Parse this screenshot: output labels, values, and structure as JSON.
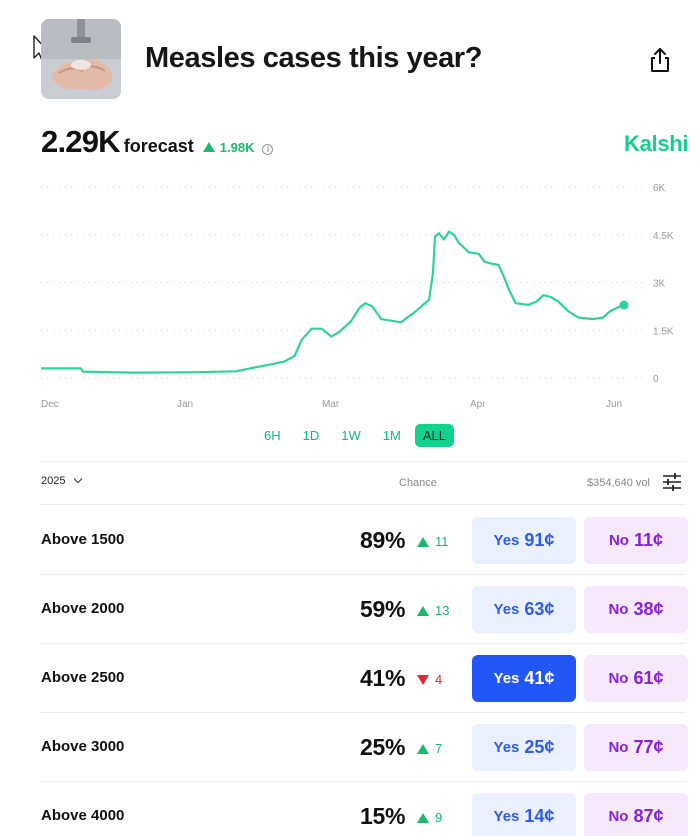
{
  "header": {
    "title": "Measles cases this year?"
  },
  "forecast": {
    "value": "2.29K",
    "label": "forecast",
    "change": "1.98K",
    "info_icon": "info-icon"
  },
  "brand": "Kalshi",
  "chart_data": {
    "type": "line",
    "x_ticks": [
      "Dec",
      "Jan",
      "Mar",
      "Apr",
      "Jun"
    ],
    "y_ticks": [
      "6K",
      "4.5K",
      "3K",
      "1.5K",
      "0"
    ],
    "ylim": [
      0,
      6000
    ],
    "grid": true,
    "color": "#2ed395",
    "series": [
      {
        "values": [
          [
            0,
            300
          ],
          [
            40,
            300
          ],
          [
            42,
            200
          ],
          [
            90,
            170
          ],
          [
            150,
            180
          ],
          [
            196,
            210
          ],
          [
            210,
            300
          ],
          [
            230,
            420
          ],
          [
            245,
            520
          ],
          [
            255,
            700
          ],
          [
            262,
            1200
          ],
          [
            272,
            1550
          ],
          [
            282,
            1550
          ],
          [
            292,
            1300
          ],
          [
            300,
            1450
          ],
          [
            312,
            1800
          ],
          [
            320,
            2200
          ],
          [
            326,
            2350
          ],
          [
            333,
            2250
          ],
          [
            342,
            1850
          ],
          [
            352,
            1800
          ],
          [
            362,
            1750
          ],
          [
            368,
            1900
          ],
          [
            375,
            2050
          ],
          [
            386,
            2350
          ],
          [
            390,
            2450
          ],
          [
            394,
            3300
          ],
          [
            396,
            4450
          ],
          [
            400,
            4550
          ],
          [
            405,
            4350
          ],
          [
            410,
            4600
          ],
          [
            415,
            4500
          ],
          [
            420,
            4250
          ],
          [
            425,
            4100
          ],
          [
            430,
            3950
          ],
          [
            440,
            3900
          ],
          [
            446,
            3650
          ],
          [
            452,
            3600
          ],
          [
            460,
            3550
          ],
          [
            465,
            3200
          ],
          [
            470,
            2800
          ],
          [
            477,
            2350
          ],
          [
            490,
            2300
          ],
          [
            498,
            2400
          ],
          [
            505,
            2600
          ],
          [
            512,
            2550
          ],
          [
            520,
            2400
          ],
          [
            530,
            2100
          ],
          [
            540,
            1900
          ],
          [
            555,
            1850
          ],
          [
            565,
            1900
          ],
          [
            572,
            2100
          ],
          [
            582,
            2250
          ],
          [
            586,
            2290
          ]
        ]
      }
    ]
  },
  "ranges": [
    "6H",
    "1D",
    "1W",
    "1M",
    "ALL"
  ],
  "active_range": "ALL",
  "markets_header": {
    "year": "2025",
    "chance": "Chance",
    "volume": "$354,640 vol",
    "filter_icon": "sliders-icon"
  },
  "rows": [
    {
      "label": "Above 1500",
      "chance": "89%",
      "delta": "11",
      "direction": "up",
      "yes_label": "Yes",
      "yes_price": "91¢",
      "no_label": "No",
      "no_price": "11¢"
    },
    {
      "label": "Above 2000",
      "chance": "59%",
      "delta": "13",
      "direction": "up",
      "yes_label": "Yes",
      "yes_price": "63¢",
      "no_label": "No",
      "no_price": "38¢"
    },
    {
      "label": "Above 2500",
      "chance": "41%",
      "delta": "4",
      "direction": "down",
      "yes_label": "Yes",
      "yes_price": "41¢",
      "no_label": "No",
      "no_price": "61¢"
    },
    {
      "label": "Above 3000",
      "chance": "25%",
      "delta": "7",
      "direction": "up",
      "yes_label": "Yes",
      "yes_price": "25¢",
      "no_label": "No",
      "no_price": "77¢"
    },
    {
      "label": "Above 4000",
      "chance": "15%",
      "delta": "9",
      "direction": "up",
      "yes_label": "Yes",
      "yes_price": "14¢",
      "no_label": "No",
      "no_price": "87¢"
    }
  ],
  "icons": {
    "share": "share-icon",
    "cursor": "mouse-cursor-icon",
    "thumbnail": "hand-washing-image"
  }
}
